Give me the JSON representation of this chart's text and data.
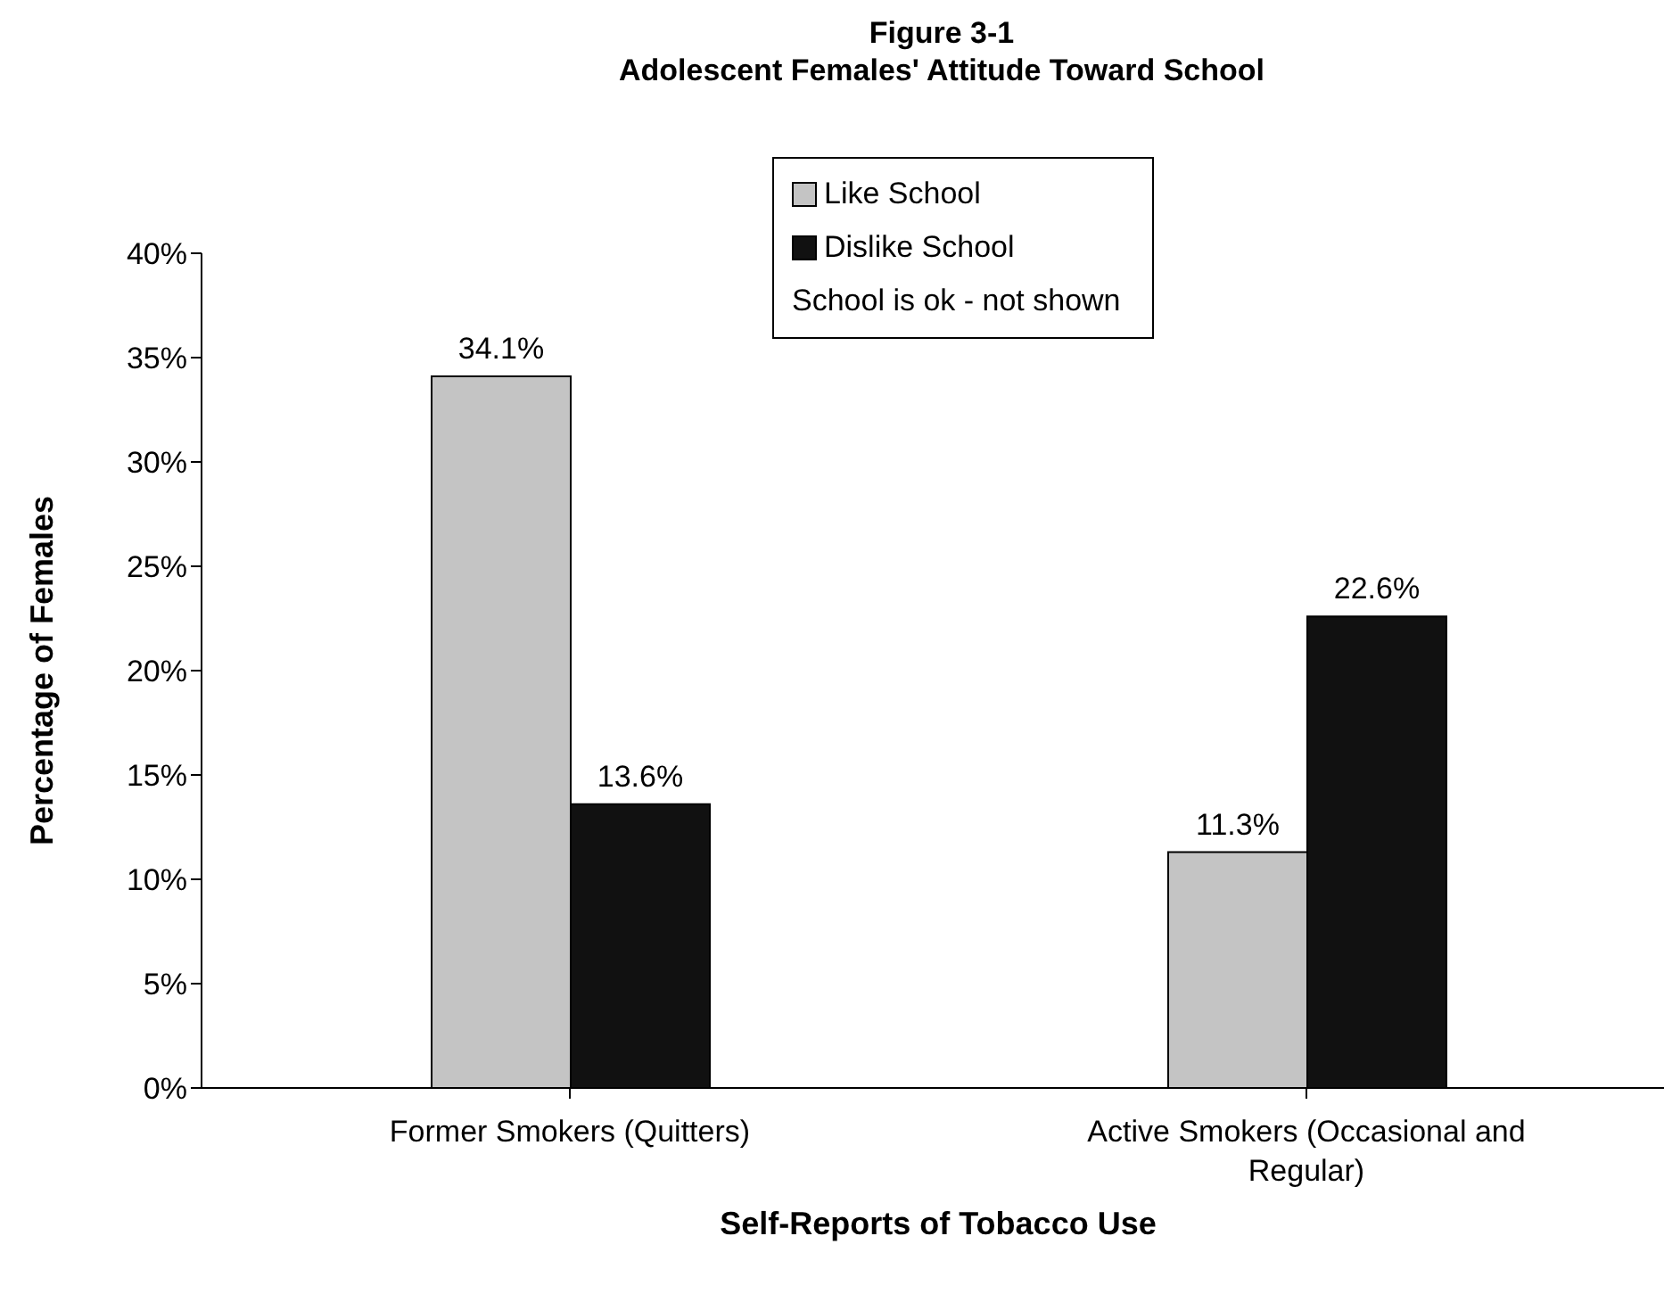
{
  "chart_data": {
    "type": "bar",
    "title": "Figure 3-1",
    "subtitle": "Adolescent Females' Attitude Toward School",
    "xlabel": "Self-Reports of Tobacco Use",
    "ylabel": "Percentage of Females",
    "categories": [
      "Former Smokers (Quitters)",
      "Active Smokers (Occasional and Regular)"
    ],
    "series": [
      {
        "name": "Like School",
        "color": "#c4c4c4",
        "values": [
          34.1,
          11.3
        ],
        "value_labels": [
          "34.1%",
          "11.3%"
        ]
      },
      {
        "name": "Dislike School",
        "color": "#111111",
        "values": [
          13.6,
          22.6
        ],
        "value_labels": [
          "13.6%",
          "22.6%"
        ]
      }
    ],
    "ylim": [
      0,
      40
    ],
    "yticks": [
      {
        "value": 0,
        "label": "0%"
      },
      {
        "value": 5,
        "label": "5%"
      },
      {
        "value": 10,
        "label": "10%"
      },
      {
        "value": 15,
        "label": "15%"
      },
      {
        "value": 20,
        "label": "20%"
      },
      {
        "value": 25,
        "label": "25%"
      },
      {
        "value": 30,
        "label": "30%"
      },
      {
        "value": 35,
        "label": "35%"
      },
      {
        "value": 40,
        "label": "40%"
      }
    ],
    "annotations": [
      "School is ok - not shown"
    ],
    "legend": "top",
    "grid": false
  }
}
